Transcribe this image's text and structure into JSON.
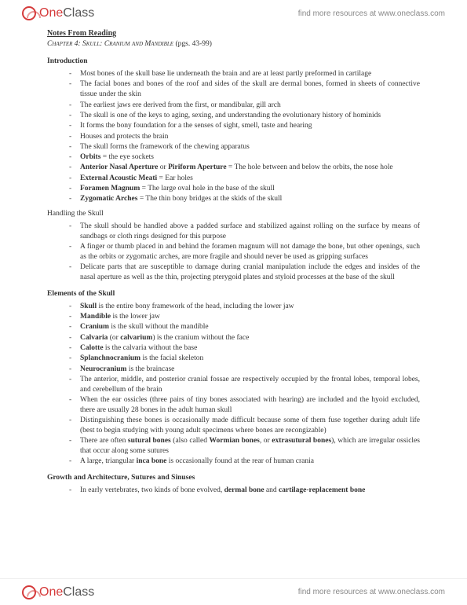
{
  "brand": {
    "part1": "One",
    "part2": "Class"
  },
  "resources_text": "find more resources at www.oneclass.com",
  "title": "Notes From Reading",
  "chapter": {
    "label": "Chapter 4: Skull: Cranium and Mandible",
    "pages": "(pgs. 43-99)"
  },
  "sections": {
    "intro_heading": "Introduction",
    "intro_items": [
      "Most bones of the skull base lie underneath the brain and are at least partly preformed in cartilage",
      "The facial bones and bones of the roof and sides of the skull are dermal bones, formed in sheets of connective tissue under the skin",
      "The earliest jaws ere derived from the first, or mandibular, gill arch",
      "The skull is one of the keys to aging, sexing, and understanding the evolutionary history of hominids",
      "It forms the bony foundation for a the senses of sight, smell, taste and hearing",
      "Houses and protects the brain",
      "The skull forms the framework of the chewing apparatus",
      "<b>Orbits</b> = the eye sockets",
      "<b>Anterior Nasal Aperture</b> or <b>Piriform Aperture</b> = The hole between and below the orbits, the nose hole",
      "<b>External Acoustic Meati</b> = Ear holes",
      "<b>Foramen Magnum</b> = The large oval hole in the base of the skull",
      "<b>Zygomatic Arches</b> = The thin bony bridges at the skids of the skull"
    ],
    "handling_heading": "Handling the Skull",
    "handling_items": [
      "The skull should be handled above a padded surface and stabilized against rolling on the surface by means of sandbags or cloth rings designed for this purpose",
      "A finger or thumb placed in and behind the foramen magnum will not damage the bone, but other openings, such as the orbits or zygomatic arches, are more fragile and should never be used as gripping surfaces",
      "Delicate parts that are susceptible to damage during cranial manipulation include the edges and insides of the nasal aperture as well as the thin, projecting pterygoid plates and styloid processes at the base of the skull"
    ],
    "elements_heading": "Elements of the Skull",
    "elements_items": [
      "<b>Skull</b> is the entire bony framework of the head, including the lower jaw",
      "<b>Mandible</b> is the lower jaw",
      "<b>Cranium</b> is the skull without the mandible",
      "<b>Calvaria</b> (or <b>calvarium</b>) is the cranium without the face",
      "<b>Calotte</b> is the calvaria without the base",
      "<b>Splanchnocranium</b> is the facial skeleton",
      "<b>Neurocranium</b> is the braincase",
      "The anterior, middle, and posterior cranial fossae are respectively occupied by the frontal lobes, temporal lobes, and cerebellum of the brain",
      "When the ear ossicles (three pairs of tiny bones associated with hearing) are included and the hyoid excluded, there are usually 28 bones in the adult human skull",
      "Distinguishing these bones is occasionally made difficult because some of them fuse together during adult life (best to begin studying with young adult specimens where bones are recongizable)",
      "There are often <b>sutural bones</b> (also called <b>Wormian bones</b>, or <b>extrasutural bones</b>), which are irregular ossicles that occur along some sutures",
      "A large, triangular <b>inca bone</b> is occasionally found at the rear of human crania"
    ],
    "growth_heading": "Growth and Architecture, Sutures and Sinuses",
    "growth_items": [
      "In early vertebrates, two kinds of bone evolved, <b>dermal bone</b> and <b>cartilage-replacement bone</b>"
    ]
  }
}
